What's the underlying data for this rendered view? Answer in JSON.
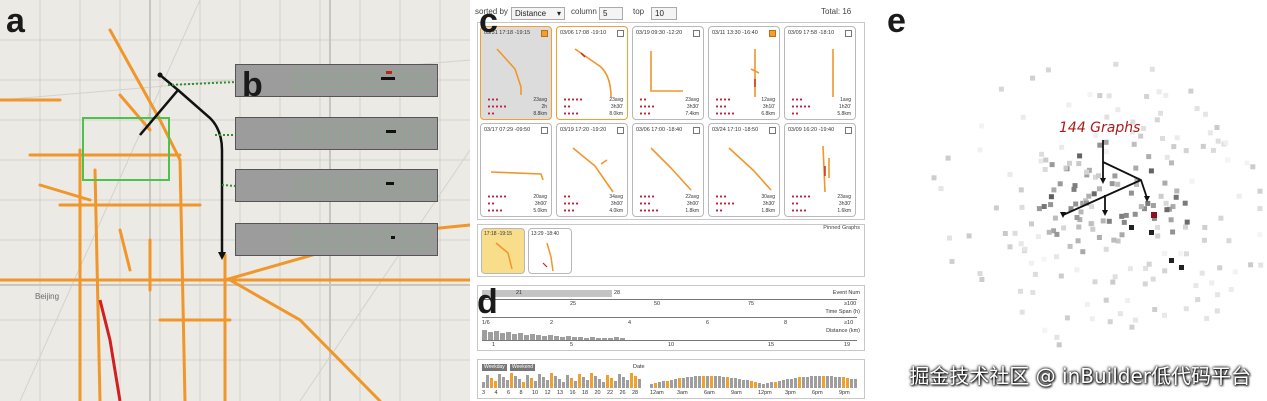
{
  "panels": {
    "a": "a",
    "b": "b",
    "c": "c",
    "d": "d",
    "e": "e"
  },
  "map": {
    "labels": [
      "Beijing"
    ]
  },
  "toolbar": {
    "sorted_by_label": "sorted by",
    "sort_value": "Distance",
    "column_label": "column",
    "column_value": "5",
    "top_label": "top",
    "top_value": "10",
    "total": "Total: 16"
  },
  "cards": [
    {
      "time": "03/31 17:18 -19:15",
      "checked": true,
      "selected": true,
      "stats": [
        "23avg",
        "2h",
        "8.8km"
      ]
    },
    {
      "time": "03/06 17:08 -19:10",
      "checked": false,
      "selected": false,
      "stats": [
        "23avg",
        "3h30'",
        "8.0km"
      ]
    },
    {
      "time": "03/19 09:30 -12:20",
      "checked": false,
      "selected": false,
      "stats": [
        "23avg",
        "3h30'",
        "7.4km"
      ]
    },
    {
      "time": "03/11 13:30 -16:40",
      "checked": true,
      "selected": false,
      "stats": [
        "12avg",
        "3h10'",
        "6.8km"
      ]
    },
    {
      "time": "03/09 17:58 -18:10",
      "checked": false,
      "selected": false,
      "stats": [
        "1avg",
        "1h20'",
        "5.8km"
      ]
    },
    {
      "time": "03/17 07:29 -09:50",
      "checked": false,
      "selected": false,
      "stats": [
        "20avg",
        "3h00'",
        "5.0km"
      ]
    },
    {
      "time": "03/19 17:20 -19:20",
      "checked": false,
      "selected": false,
      "stats": [
        "34avg",
        "3h00'",
        "4.0km"
      ]
    },
    {
      "time": "03/06 17:00 -18:40",
      "checked": false,
      "selected": false,
      "stats": [
        "22avg",
        "3h00'",
        "1.8km"
      ]
    },
    {
      "time": "03/24 17:10 -18:50",
      "checked": false,
      "selected": false,
      "stats": [
        "30avg",
        "3h30'",
        "1.8km"
      ]
    },
    {
      "time": "03/09 16:20 -19:40",
      "checked": false,
      "selected": false,
      "stats": [
        "23avg",
        "3h30'",
        "1.6km"
      ]
    }
  ],
  "pinned": {
    "label": "Pinned Graphs",
    "items": [
      {
        "time": "17:18 -19:15"
      },
      {
        "time": "13:29 -18:40"
      }
    ]
  },
  "filters": {
    "event": {
      "label": "Event Num",
      "ticks": [
        "1",
        "21",
        "28",
        "25",
        "50",
        "75",
        "≥100"
      ]
    },
    "timespan": {
      "label": "Time Span (h)",
      "ticks": [
        "1/6",
        "2",
        "4",
        "6",
        "8",
        "≥10"
      ]
    },
    "distance": {
      "label": "Distance (km)",
      "ticks": [
        "1",
        "5",
        "10",
        "15",
        "19"
      ]
    }
  },
  "date": {
    "label": "Date",
    "weekday": "Weekday",
    "weekend": "Weekend",
    "day_ticks": [
      "3",
      "4",
      "6",
      "8",
      "10",
      "12",
      "13",
      "16",
      "18",
      "20",
      "22",
      "26",
      "28"
    ],
    "hour_ticks": [
      "12am",
      "3am",
      "6am",
      "9am",
      "12pm",
      "3pm",
      "6pm",
      "9pm"
    ]
  },
  "graph_panel": {
    "title": "144 Graphs"
  },
  "watermark": "掘金技术社区 @ inBuilder低代码平台"
}
